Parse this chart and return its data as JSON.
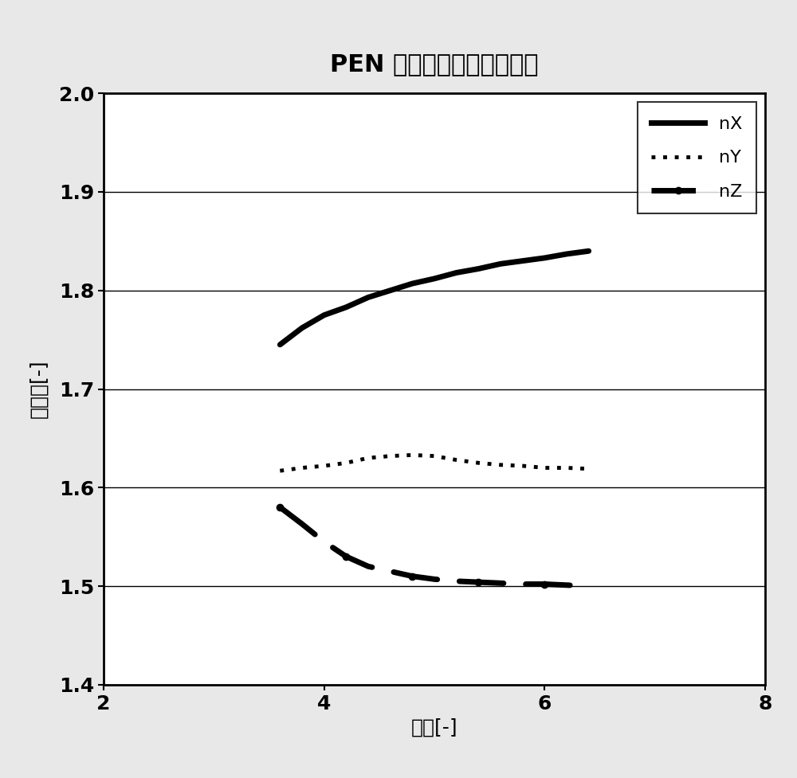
{
  "title": "PEN 的单轴拉伸后的折射率",
  "xlabel": "倍数[-]",
  "ylabel": "折射率[-]",
  "xlim": [
    2,
    8
  ],
  "ylim": [
    1.4,
    2.0
  ],
  "xticks": [
    2,
    4,
    6,
    8
  ],
  "yticks": [
    1.4,
    1.5,
    1.6,
    1.7,
    1.8,
    1.9,
    2.0
  ],
  "nX_x": [
    3.6,
    3.8,
    4.0,
    4.2,
    4.4,
    4.6,
    4.8,
    5.0,
    5.2,
    5.4,
    5.6,
    5.8,
    6.0,
    6.2,
    6.4
  ],
  "nX_y": [
    1.745,
    1.762,
    1.775,
    1.783,
    1.793,
    1.8,
    1.807,
    1.812,
    1.818,
    1.822,
    1.827,
    1.83,
    1.833,
    1.837,
    1.84
  ],
  "nY_x": [
    3.6,
    3.8,
    4.0,
    4.2,
    4.4,
    4.6,
    4.8,
    5.0,
    5.2,
    5.4,
    5.6,
    5.8,
    6.0,
    6.2,
    6.4
  ],
  "nY_y": [
    1.617,
    1.62,
    1.622,
    1.625,
    1.63,
    1.632,
    1.633,
    1.632,
    1.628,
    1.625,
    1.623,
    1.622,
    1.62,
    1.62,
    1.619
  ],
  "nZ_x": [
    3.6,
    3.8,
    4.0,
    4.2,
    4.4,
    4.6,
    4.8,
    5.0,
    5.2,
    5.4,
    5.6,
    5.8,
    6.0,
    6.2,
    6.4
  ],
  "nZ_y": [
    1.58,
    1.563,
    1.545,
    1.53,
    1.52,
    1.515,
    1.51,
    1.507,
    1.505,
    1.504,
    1.503,
    1.502,
    1.502,
    1.501,
    1.5
  ],
  "line_color": "#000000",
  "bg_color": "#ffffff",
  "outer_bg": "#d0d0d0",
  "title_fontsize": 22,
  "label_fontsize": 18,
  "tick_fontsize": 18,
  "legend_fontsize": 16
}
